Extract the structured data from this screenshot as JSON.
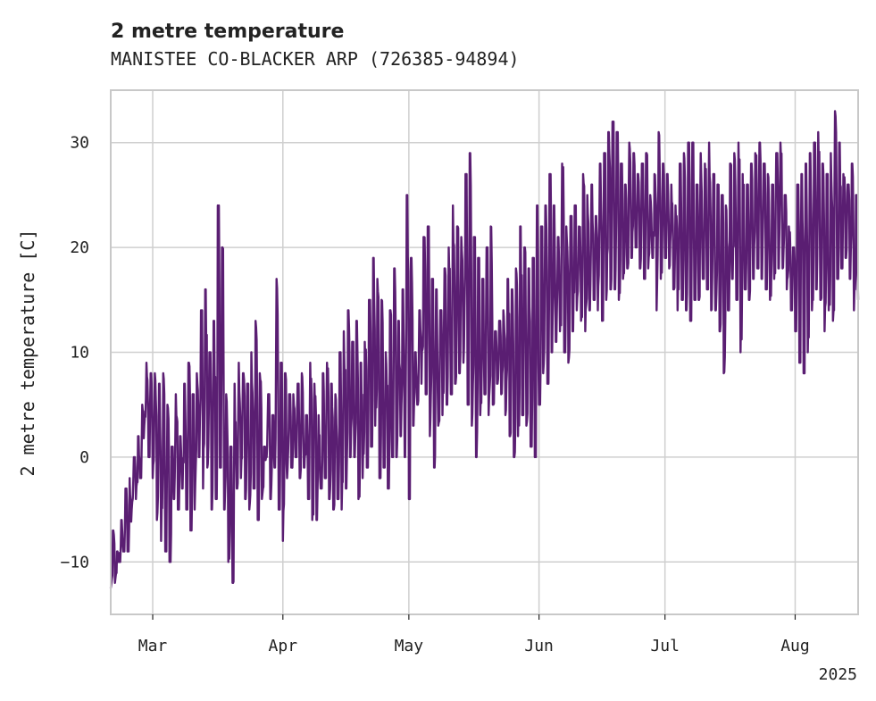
{
  "chart_data": {
    "type": "line",
    "title": "2 metre temperature",
    "subtitle": "MANISTEE CO-BLACKER ARP (726385-94894)",
    "ylabel": "2 metre temperature [C]",
    "xlabel": "",
    "year_label": "2025",
    "xlim": [
      "2025-02-19",
      "2025-08-16"
    ],
    "ylim": [
      -15,
      35
    ],
    "yticks": [
      -10,
      0,
      10,
      20,
      30
    ],
    "xticks": [
      {
        "date": "2025-03-01",
        "label": "Mar"
      },
      {
        "date": "2025-04-01",
        "label": "Apr"
      },
      {
        "date": "2025-05-01",
        "label": "May"
      },
      {
        "date": "2025-06-01",
        "label": "Jun"
      },
      {
        "date": "2025-07-01",
        "label": "Jul"
      },
      {
        "date": "2025-08-01",
        "label": "Aug"
      }
    ],
    "grid": true,
    "line_color": "#5a1e72",
    "series": [
      {
        "x": [
          "2025-02-19",
          "2025-02-20",
          "2025-02-21",
          "2025-02-22",
          "2025-02-23",
          "2025-02-24",
          "2025-02-25",
          "2025-02-26",
          "2025-02-27",
          "2025-02-28",
          "2025-03-01",
          "2025-03-02",
          "2025-03-03",
          "2025-03-04",
          "2025-03-05",
          "2025-03-06",
          "2025-03-07",
          "2025-03-08",
          "2025-03-09",
          "2025-03-10",
          "2025-03-11",
          "2025-03-12",
          "2025-03-13",
          "2025-03-14",
          "2025-03-15",
          "2025-03-16",
          "2025-03-17",
          "2025-03-18",
          "2025-03-19",
          "2025-03-20",
          "2025-03-21",
          "2025-03-22",
          "2025-03-23",
          "2025-03-24",
          "2025-03-25",
          "2025-03-26",
          "2025-03-27",
          "2025-03-28",
          "2025-03-29",
          "2025-03-30",
          "2025-03-31",
          "2025-04-01",
          "2025-04-02",
          "2025-04-03",
          "2025-04-04",
          "2025-04-05",
          "2025-04-06",
          "2025-04-07",
          "2025-04-08",
          "2025-04-09",
          "2025-04-10",
          "2025-04-11",
          "2025-04-12",
          "2025-04-13",
          "2025-04-14",
          "2025-04-15",
          "2025-04-16",
          "2025-04-17",
          "2025-04-18",
          "2025-04-19",
          "2025-04-20",
          "2025-04-21",
          "2025-04-22",
          "2025-04-23",
          "2025-04-24",
          "2025-04-25",
          "2025-04-26",
          "2025-04-27",
          "2025-04-28",
          "2025-04-29",
          "2025-04-30",
          "2025-05-01",
          "2025-05-02",
          "2025-05-03",
          "2025-05-04",
          "2025-05-05",
          "2025-05-06",
          "2025-05-07",
          "2025-05-08",
          "2025-05-09",
          "2025-05-10",
          "2025-05-11",
          "2025-05-12",
          "2025-05-13",
          "2025-05-14",
          "2025-05-15",
          "2025-05-16",
          "2025-05-17",
          "2025-05-18",
          "2025-05-19",
          "2025-05-20",
          "2025-05-21",
          "2025-05-22",
          "2025-05-23",
          "2025-05-24",
          "2025-05-25",
          "2025-05-26",
          "2025-05-27",
          "2025-05-28",
          "2025-05-29",
          "2025-05-30",
          "2025-05-31",
          "2025-06-01",
          "2025-06-02",
          "2025-06-03",
          "2025-06-04",
          "2025-06-05",
          "2025-06-06",
          "2025-06-07",
          "2025-06-08",
          "2025-06-09",
          "2025-06-10",
          "2025-06-11",
          "2025-06-12",
          "2025-06-13",
          "2025-06-14",
          "2025-06-15",
          "2025-06-16",
          "2025-06-17",
          "2025-06-18",
          "2025-06-19",
          "2025-06-20",
          "2025-06-21",
          "2025-06-22",
          "2025-06-23",
          "2025-06-24",
          "2025-06-25",
          "2025-06-26",
          "2025-06-27",
          "2025-06-28",
          "2025-06-29",
          "2025-06-30",
          "2025-07-01",
          "2025-07-02",
          "2025-07-03",
          "2025-07-04",
          "2025-07-05",
          "2025-07-06",
          "2025-07-07",
          "2025-07-08",
          "2025-07-09",
          "2025-07-10",
          "2025-07-11",
          "2025-07-12",
          "2025-07-13",
          "2025-07-14",
          "2025-07-15",
          "2025-07-16",
          "2025-07-17",
          "2025-07-18",
          "2025-07-19",
          "2025-07-20",
          "2025-07-21",
          "2025-07-22",
          "2025-07-23",
          "2025-07-24",
          "2025-07-25",
          "2025-07-26",
          "2025-07-27",
          "2025-07-28",
          "2025-07-29",
          "2025-07-30",
          "2025-07-31",
          "2025-08-01",
          "2025-08-02",
          "2025-08-03",
          "2025-08-04",
          "2025-08-05",
          "2025-08-06",
          "2025-08-07",
          "2025-08-08",
          "2025-08-09",
          "2025-08-10",
          "2025-08-11",
          "2025-08-12",
          "2025-08-13",
          "2025-08-14",
          "2025-08-15",
          "2025-08-16"
        ],
        "y_low": [
          -12.5,
          -12,
          -10,
          -9,
          -9,
          -5,
          -4,
          -2,
          3,
          0,
          -2,
          -6,
          -8,
          -9,
          -10,
          -4,
          -5,
          -3,
          -5,
          -7,
          -5,
          0,
          -3,
          -1,
          -5,
          -4,
          -1,
          -5,
          -10,
          -12,
          -3,
          -2,
          -4,
          -5,
          -3,
          -6,
          -4,
          0,
          -4,
          -1,
          -5,
          -8,
          -2,
          -1,
          0,
          -2,
          -1,
          -4,
          -6,
          -6,
          -3,
          -2,
          -4,
          -5,
          -4,
          -5,
          -3,
          0,
          0,
          -4,
          -2,
          -1,
          1,
          3,
          -2,
          -1,
          -3,
          0,
          0,
          2,
          0,
          -4,
          3,
          5,
          7,
          6,
          2,
          -1,
          3,
          4,
          5,
          6,
          7,
          8,
          9,
          5,
          3,
          0,
          4,
          6,
          4,
          5,
          7,
          6,
          4,
          2,
          0,
          2,
          4,
          3,
          1,
          0,
          5,
          8,
          7,
          10,
          11,
          12,
          10,
          9,
          12,
          14,
          13,
          12,
          14,
          15,
          14,
          13,
          15,
          16,
          16,
          15,
          17,
          18,
          19,
          20,
          18,
          17,
          18,
          19,
          14,
          17,
          19,
          18,
          16,
          14,
          15,
          14,
          13,
          15,
          15,
          17,
          16,
          14,
          14,
          12,
          8,
          14,
          17,
          15,
          10,
          16,
          15,
          17,
          18,
          17,
          16,
          15,
          17,
          18,
          18,
          16,
          14,
          12,
          9,
          8,
          10,
          14,
          16,
          15,
          12,
          14,
          13,
          17,
          18,
          19,
          17,
          14,
          15
        ],
        "y_high": [
          -7,
          -9,
          -6,
          -3,
          -2,
          0,
          2,
          5,
          9,
          8,
          8,
          7,
          8,
          5,
          1,
          6,
          2,
          7,
          9,
          6,
          8,
          14,
          16,
          10,
          13,
          24,
          20,
          6,
          1,
          7,
          9,
          8,
          7,
          10,
          13,
          8,
          1,
          6,
          4,
          17,
          9,
          8,
          6,
          6,
          7,
          8,
          4,
          9,
          7,
          4,
          8,
          9,
          7,
          6,
          10,
          12,
          14,
          11,
          13,
          9,
          11,
          15,
          19,
          17,
          15,
          10,
          14,
          18,
          13,
          16,
          25,
          19,
          10,
          14,
          21,
          22,
          17,
          16,
          14,
          18,
          20,
          24,
          22,
          21,
          27,
          29,
          21,
          19,
          17,
          20,
          22,
          12,
          13,
          14,
          17,
          16,
          18,
          22,
          20,
          18,
          19,
          24,
          22,
          24,
          27,
          24,
          21,
          28,
          22,
          23,
          24,
          22,
          27,
          25,
          26,
          23,
          28,
          29,
          31,
          32,
          31,
          28,
          26,
          30,
          29,
          27,
          28,
          29,
          25,
          27,
          31,
          28,
          27,
          26,
          24,
          28,
          29,
          30,
          30,
          26,
          29,
          28,
          30,
          27,
          26,
          25,
          24,
          28,
          29,
          30,
          27,
          26,
          28,
          29,
          30,
          28,
          27,
          26,
          29,
          30,
          25,
          22,
          20,
          26,
          27,
          28,
          29,
          30,
          31,
          28,
          27,
          29,
          33,
          30,
          27,
          26,
          28,
          25,
          24
        ]
      }
    ]
  }
}
